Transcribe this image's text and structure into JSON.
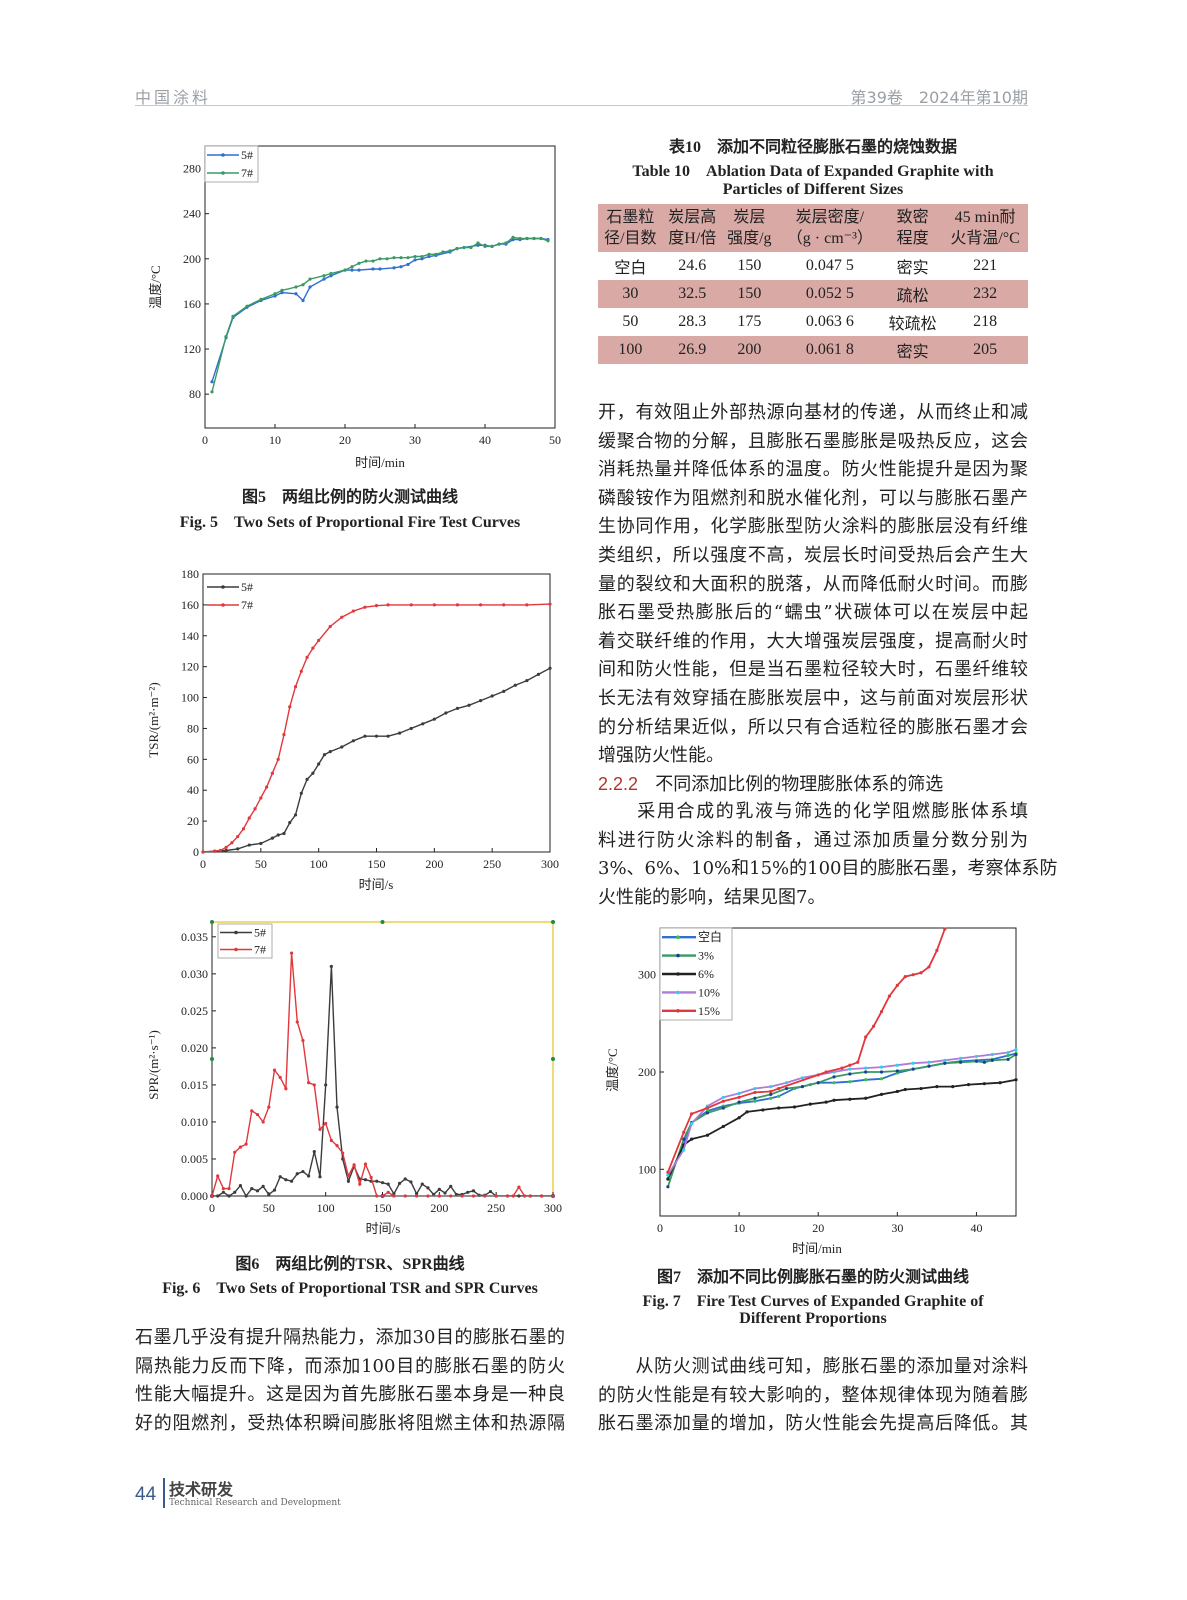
{
  "header": {
    "journal": "中国涂料",
    "issue": "第39卷　2024年第10期"
  },
  "footer": {
    "page": "44",
    "section_cn": "技术研发",
    "section_en": "Technical Research and Development"
  },
  "fig5": {
    "caption_cn": "图5　两组比例的防火测试曲线",
    "caption_en": "Fig. 5　Two Sets of Proportional Fire Test Curves"
  },
  "fig6": {
    "caption_cn": "图6　两组比例的TSR、SPR曲线",
    "caption_en": "Fig. 6　Two Sets of Proportional TSR and SPR Curves"
  },
  "fig7": {
    "caption_cn": "图7　添加不同比例膨胀石墨的防火测试曲线",
    "caption_en_1": "Fig. 7　Fire Test Curves of Expanded Graphite of",
    "caption_en_2": "Different Proportions"
  },
  "table10": {
    "caption_cn": "表10　添加不同粒径膨胀石墨的烧蚀数据",
    "caption_en_1": "Table 10　Ablation Data of Expanded Graphite with",
    "caption_en_2": "Particles of Different Sizes",
    "headers": [
      [
        "石墨粒",
        "径/目数"
      ],
      [
        "炭层高",
        "度H/倍"
      ],
      [
        "炭层",
        "强度/g"
      ],
      [
        "炭层密度/",
        "（g · cm⁻³）"
      ],
      [
        "致密",
        "程度"
      ],
      [
        "45 min耐",
        "火背温/°C"
      ]
    ],
    "rows": [
      [
        "空白",
        "24.6",
        "150",
        "0.047 5",
        "密实",
        "221"
      ],
      [
        "30",
        "32.5",
        "150",
        "0.052 5",
        "疏松",
        "232"
      ],
      [
        "50",
        "28.3",
        "175",
        "0.063 6",
        "较疏松",
        "218"
      ],
      [
        "100",
        "26.9",
        "200",
        "0.061 8",
        "密实",
        "205"
      ]
    ]
  },
  "left_text": [
    "石墨几乎没有提升隔热能力，添加30目的膨胀石墨的",
    "隔热能力反而下降，而添加100目的膨胀石墨的防火",
    "性能大幅提升。这是因为首先膨胀石墨本身是一种良",
    "好的阻燃剂，受热体积瞬间膨胀将阻燃主体和热源隔"
  ],
  "right_text_1": [
    "开，有效阻止外部热源向基材的传递，从而终止和减",
    "缓聚合物的分解，且膨胀石墨膨胀是吸热反应，这会",
    "消耗热量并降低体系的温度。防火性能提升是因为聚",
    "磷酸铵作为阻燃剂和脱水催化剂，可以与膨胀石墨产",
    "生协同作用，化学膨胀型防火涂料的膨胀层没有纤维",
    "类组织，所以强度不高，炭层长时间受热后会产生大",
    "量的裂纹和大面积的脱落，从而降低耐火时间。而膨",
    "胀石墨受热膨胀后的“蠕虫”状碳体可以在炭层中起",
    "着交联纤维的作用，大大增强炭层强度，提高耐火时",
    "间和防火性能，但是当石墨粒径较大时，石墨纤维较",
    "长无法有效穿插在膨胀炭层中，这与前面对炭层形状",
    "的分析结果近似，所以只有合适粒径的膨胀石墨才会",
    "增强防火性能。"
  ],
  "section": {
    "number": "2.2.2",
    "title": "不同添加比例的物理膨胀体系的筛选"
  },
  "right_text_2": [
    "　　采用合成的乳液与筛选的化学阻燃膨胀体系填",
    "料进行防火涂料的制备，通过添加质量分数分别为",
    "3%、6%、10%和15%的100目的膨胀石墨，考察体系防",
    "火性能的影响，结果见图7。"
  ],
  "right_text_3": [
    "　　从防火测试曲线可知，膨胀石墨的添加量对涂料",
    "的防火性能是有较大影响的，整体规律体现为随着膨",
    "胀石墨添加量的增加，防火性能会先提高后降低。其"
  ],
  "chart_data": [
    {
      "type": "line",
      "xlabel": "时间/min",
      "ylabel": "温度/°C",
      "xlim": [
        0,
        50
      ],
      "ylim": [
        50,
        300
      ],
      "xticks": [
        "0",
        "10",
        "20",
        "30",
        "40",
        "50"
      ],
      "yticks": [
        "80",
        "120",
        "160",
        "200",
        "240",
        "280"
      ],
      "legend": "top-left",
      "series": [
        {
          "name": "5#",
          "color": "#2f6fd0",
          "marker_color": "#2f6fd0",
          "x": [
            1,
            3,
            4,
            6,
            8,
            10,
            11,
            13,
            14,
            15,
            17,
            18,
            20,
            21,
            22,
            24,
            25,
            27,
            28,
            29,
            30,
            31,
            32,
            33,
            35,
            36,
            37,
            39,
            40,
            41,
            42,
            43,
            44,
            45,
            46,
            47,
            48,
            49
          ],
          "y": [
            91,
            130,
            148,
            157,
            163,
            167,
            170,
            169,
            163,
            175,
            182,
            185,
            190,
            190,
            190,
            191,
            191,
            192,
            193,
            195,
            199,
            200,
            202,
            203,
            206,
            209,
            210,
            212,
            212,
            211,
            213,
            213,
            217,
            217,
            218,
            218,
            218,
            217
          ]
        },
        {
          "name": "7#",
          "color": "#3a9a63",
          "marker_color": "#3a9a63",
          "x": [
            1,
            3,
            4,
            6,
            8,
            10,
            11,
            13,
            14,
            15,
            17,
            18,
            20,
            21,
            22,
            23,
            24,
            25,
            26,
            27,
            28,
            29,
            30,
            31,
            32,
            33,
            34,
            35,
            36,
            37,
            38,
            39,
            40,
            41,
            42,
            43,
            44,
            45,
            46,
            47,
            48,
            49
          ],
          "y": [
            82,
            131,
            149,
            158,
            164,
            169,
            172,
            175,
            177,
            182,
            185,
            187,
            190,
            193,
            196,
            198,
            198,
            200,
            200,
            201,
            201,
            201,
            202,
            202,
            204,
            204,
            206,
            207,
            209,
            210,
            210,
            214,
            211,
            211,
            213,
            214,
            219,
            218,
            218,
            218,
            218,
            216
          ]
        }
      ]
    },
    {
      "type": "line",
      "xlabel": "时间/s",
      "ylabel": "TSR/(m²·m⁻²)",
      "xlim": [
        0,
        300
      ],
      "ylim": [
        0,
        180
      ],
      "xticks": [
        "0",
        "50",
        "100",
        "150",
        "200",
        "250",
        "300"
      ],
      "yticks": [
        "0",
        "20",
        "40",
        "60",
        "80",
        "100",
        "120",
        "140",
        "160",
        "180"
      ],
      "legend": "top-left",
      "series": [
        {
          "name": "5#",
          "color": "#3c3c3c",
          "marker_color": "#3c3c3c",
          "x": [
            0,
            10,
            20,
            30,
            40,
            50,
            60,
            65,
            70,
            75,
            80,
            85,
            90,
            95,
            100,
            105,
            110,
            120,
            130,
            140,
            150,
            160,
            170,
            180,
            190,
            200,
            210,
            220,
            230,
            240,
            250,
            260,
            270,
            280,
            290,
            300
          ],
          "y": [
            0,
            0.5,
            1,
            2,
            4.5,
            5.5,
            9,
            11,
            12,
            19,
            24,
            38,
            47,
            51,
            57,
            63,
            65,
            68,
            72,
            75,
            75,
            75,
            77,
            80,
            83,
            86,
            90,
            93,
            95,
            98,
            101,
            104,
            108,
            111,
            115,
            119
          ]
        },
        {
          "name": "7#",
          "color": "#e0383c",
          "marker_color": "#e0383c",
          "x": [
            0,
            10,
            15,
            20,
            25,
            30,
            35,
            40,
            45,
            50,
            55,
            60,
            65,
            70,
            75,
            80,
            85,
            90,
            95,
            100,
            110,
            120,
            130,
            140,
            150,
            160,
            180,
            200,
            220,
            240,
            260,
            280,
            300
          ],
          "y": [
            0,
            0.5,
            1,
            3,
            6,
            10,
            15,
            22,
            28,
            35,
            42,
            51,
            60,
            76,
            94,
            107,
            117,
            126,
            132,
            137,
            146,
            152,
            156,
            158.5,
            159.5,
            160,
            160,
            160,
            160,
            160,
            160,
            160,
            160.5
          ]
        }
      ]
    },
    {
      "type": "line",
      "xlabel": "时间/s",
      "ylabel": "SPR/(m²·s⁻¹)",
      "xlim": [
        0,
        300
      ],
      "ylim": [
        0,
        0.037
      ],
      "xticks": [
        "0",
        "50",
        "100",
        "150",
        "200",
        "250",
        "300"
      ],
      "yticks": [
        "0.000",
        "0.005",
        "0.010",
        "0.015",
        "0.020",
        "0.025",
        "0.030",
        "0.035"
      ],
      "legend": "top-left",
      "series": [
        {
          "name": "5#",
          "color": "#3c3c3c",
          "marker_color": "#3c3c3c",
          "x": [
            0,
            5,
            10,
            15,
            20,
            25,
            30,
            35,
            40,
            45,
            50,
            55,
            60,
            65,
            70,
            75,
            80,
            85,
            90,
            95,
            100,
            105,
            110,
            115,
            120,
            125,
            130,
            135,
            140,
            145,
            150,
            155,
            160,
            165,
            170,
            175,
            180,
            185,
            190,
            195,
            200,
            205,
            210,
            215,
            220,
            225,
            230,
            235,
            240,
            245,
            250,
            260,
            270,
            280,
            290,
            300
          ],
          "y": [
            0,
            0,
            0.0005,
            0,
            0.0005,
            0.0014,
            0,
            0.001,
            0.0007,
            0.0013,
            0.0002,
            0.0008,
            0.0026,
            0.0022,
            0.002,
            0.003,
            0.0033,
            0.0027,
            0.006,
            0.0026,
            0.015,
            0.031,
            0.012,
            0.005,
            0.002,
            0.004,
            0.0023,
            0.0022,
            0.002,
            0.002,
            0.0018,
            0.0016,
            0.0003,
            0.0017,
            0.0023,
            0.0019,
            0.0003,
            0.0016,
            0.0011,
            0.0002,
            0.0009,
            0.0004,
            0.0013,
            0.0002,
            0.0002,
            0.0005,
            0.0007,
            0.0001,
            0.0001,
            0.0006,
            0,
            0,
            0,
            0,
            0,
            0
          ]
        },
        {
          "name": "7#",
          "color": "#e0383c",
          "marker_color": "#e0383c",
          "x": [
            0,
            5,
            10,
            15,
            20,
            25,
            30,
            35,
            40,
            45,
            50,
            55,
            60,
            65,
            70,
            75,
            80,
            85,
            90,
            95,
            100,
            105,
            110,
            115,
            120,
            125,
            130,
            135,
            140,
            145,
            150,
            155,
            160,
            170,
            180,
            190,
            200,
            210,
            220,
            230,
            240,
            250,
            260,
            265,
            270,
            275,
            280,
            290,
            300
          ],
          "y": [
            0,
            0.0027,
            0.001,
            0.001,
            0.0059,
            0.0066,
            0.007,
            0.0115,
            0.011,
            0.01,
            0.012,
            0.017,
            0.016,
            0.0145,
            0.0328,
            0.0235,
            0.021,
            0.0153,
            0.015,
            0.009,
            0.0098,
            0.0075,
            0.0068,
            0.0058,
            0.0027,
            0.0042,
            0.0016,
            0.0043,
            0.0025,
            0,
            0,
            0.0005,
            0,
            0,
            0,
            0,
            0,
            0,
            0,
            0,
            0,
            0,
            0,
            0,
            0.0012,
            0,
            0,
            0,
            0
          ]
        }
      ]
    },
    {
      "type": "line",
      "xlabel": "时间/min",
      "ylabel": "温度/°C",
      "xlim": [
        0,
        45
      ],
      "ylim": [
        52,
        348
      ],
      "xticks": [
        "0",
        "10",
        "20",
        "30",
        "40"
      ],
      "yticks": [
        "100",
        "200",
        "300"
      ],
      "legend": "top-left",
      "series": [
        {
          "name": "空白",
          "color": "#2f6fd0",
          "marker_color": "#35c24a",
          "x": [
            1,
            3,
            4,
            6,
            8,
            10,
            12,
            14,
            15,
            17,
            19,
            20,
            22,
            24,
            26,
            28,
            30,
            32,
            34,
            36,
            38,
            40,
            42,
            44,
            45
          ],
          "y": [
            90,
            125,
            148,
            160,
            165,
            168,
            170,
            173,
            175,
            183,
            187,
            189,
            189,
            190,
            192,
            193,
            199,
            203,
            206,
            209,
            211,
            212,
            213,
            217,
            219
          ]
        },
        {
          "name": "3%",
          "color": "#3a9a63",
          "marker_color": "#1f3c9a",
          "x": [
            1,
            3,
            4,
            6,
            8,
            10,
            12,
            14,
            16,
            18,
            20,
            22,
            24,
            26,
            28,
            30,
            32,
            34,
            36,
            38,
            40,
            41,
            42,
            44,
            45
          ],
          "y": [
            82,
            131,
            148,
            158,
            163,
            169,
            173,
            177,
            183,
            185,
            189,
            195,
            198,
            200,
            200,
            201,
            203,
            206,
            209,
            210,
            211,
            210,
            212,
            213,
            218
          ]
        },
        {
          "name": "6%",
          "color": "#222222",
          "marker_color": "#222222",
          "x": [
            1,
            3,
            4,
            6,
            8,
            10,
            11,
            13,
            15,
            17,
            19,
            21,
            22,
            24,
            26,
            28,
            30,
            31,
            33,
            35,
            37,
            39,
            41,
            43,
            45
          ],
          "y": [
            90,
            125,
            131,
            135,
            144,
            153,
            159,
            161,
            163,
            164,
            167,
            169,
            171,
            172,
            173,
            177,
            180,
            182,
            183,
            185,
            185,
            187,
            188,
            189,
            192
          ]
        },
        {
          "name": "10%",
          "color": "#b07ad8",
          "marker_color": "#2fd0e6",
          "x": [
            1,
            3,
            4,
            6,
            8,
            10,
            12,
            14,
            16,
            18,
            20,
            22,
            24,
            26,
            28,
            30,
            32,
            34,
            36,
            38,
            40,
            42,
            44,
            45
          ],
          "y": [
            94,
            120,
            147,
            165,
            174,
            178,
            183,
            185,
            189,
            194,
            197,
            200,
            203,
            204,
            205,
            207,
            209,
            210,
            212,
            214,
            216,
            218,
            220,
            223
          ]
        },
        {
          "name": "15%",
          "color": "#e0383c",
          "marker_color": "#e0383c",
          "x": [
            1,
            3,
            4,
            6,
            8,
            10,
            12,
            14,
            15,
            20,
            21,
            23,
            24,
            25,
            26,
            27,
            28,
            29,
            30,
            31,
            32,
            33,
            34,
            35,
            36
          ],
          "y": [
            97,
            138,
            157,
            163,
            170,
            174,
            179,
            180,
            183,
            197,
            200,
            204,
            207,
            210,
            236,
            247,
            262,
            278,
            289,
            298,
            300,
            302,
            308,
            325,
            347
          ]
        }
      ]
    }
  ]
}
